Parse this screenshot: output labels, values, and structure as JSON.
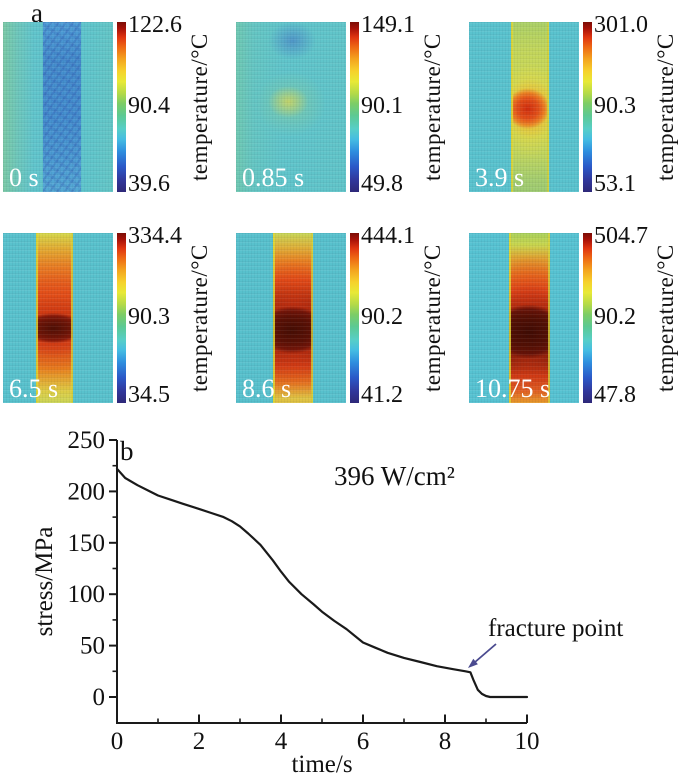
{
  "figure_labels": {
    "a": "a",
    "b": "b"
  },
  "thermal_section": {
    "colorbar_axis_label": "temperature/°C",
    "background_color_hex": "#5ec5cd",
    "colorbar_gradient_stops": [
      "#2e2878 0%",
      "#31379b 7%",
      "#2b59c8 15%",
      "#2f8fdf 24%",
      "#45bde2 31%",
      "#57cec8 37%",
      "#5cc993 45%",
      "#7ccd66 52%",
      "#b4da48 58%",
      "#e8e936 65%",
      "#f6d22c 71%",
      "#f4a51f 78%",
      "#ee6a14 85%",
      "#df3410 91%",
      "#a91208 96%",
      "#7c0d06 100%"
    ],
    "panels": [
      {
        "time_label": "0 s",
        "max_temp": "122.6",
        "mid_temp": "90.4",
        "min_temp": "39.6",
        "variant": "t0"
      },
      {
        "time_label": "0.85 s",
        "max_temp": "149.1",
        "mid_temp": "90.1",
        "min_temp": "49.8",
        "variant": "t085"
      },
      {
        "time_label": "3.9 s",
        "max_temp": "301.0",
        "mid_temp": "90.3",
        "min_temp": "53.1",
        "variant": "t39"
      },
      {
        "time_label": "6.5 s",
        "max_temp": "334.4",
        "mid_temp": "90.3",
        "min_temp": "34.5",
        "variant": "t65"
      },
      {
        "time_label": "8.6 s",
        "max_temp": "444.1",
        "mid_temp": "90.2",
        "min_temp": "41.2",
        "variant": "t86"
      },
      {
        "time_label": "10.75 s",
        "max_temp": "504.7",
        "mid_temp": "90.2",
        "min_temp": "47.8",
        "variant": "t1075"
      }
    ]
  },
  "chart_data": {
    "type": "line",
    "panel_label": "b",
    "power_annotation": "396 W/cm²",
    "fracture_annotation": "fracture point",
    "xlabel": "time/s",
    "ylabel": "stress/MPa",
    "xlim": [
      0,
      10
    ],
    "ylim": [
      0,
      250
    ],
    "x_major_ticks": [
      0,
      2,
      4,
      6,
      8,
      10
    ],
    "x_minor_ticks": [
      1,
      3,
      5,
      7,
      9
    ],
    "y_major_ticks": [
      0,
      50,
      100,
      150,
      200,
      250
    ],
    "y_minor_ticks": [
      25,
      75,
      125,
      175,
      225
    ],
    "grid": false,
    "legend": "none",
    "line_color": "#1a1a1a",
    "arrow_color": "#4a4a8f",
    "series": [
      {
        "name": "stress",
        "x": [
          0,
          0.2,
          0.5,
          0.8,
          1.0,
          1.3,
          1.6,
          2.0,
          2.3,
          2.6,
          2.8,
          3.0,
          3.2,
          3.5,
          3.8,
          4.0,
          4.2,
          4.5,
          4.8,
          5.0,
          5.3,
          5.6,
          6.0,
          6.3,
          6.6,
          7.0,
          7.4,
          7.8,
          8.2,
          8.5,
          8.62,
          8.7,
          8.8,
          8.9,
          9.0,
          9.1,
          9.3,
          10.0
        ],
        "y": [
          222,
          213,
          206,
          200,
          196,
          192,
          188,
          183,
          179,
          175,
          171,
          166,
          159,
          148,
          133,
          122,
          112,
          100,
          90,
          83,
          74,
          66,
          53,
          48,
          43,
          38,
          34,
          30,
          27,
          25,
          24,
          16,
          7,
          3,
          1,
          0,
          0,
          0
        ]
      }
    ],
    "fracture_point": {
      "x": 8.6,
      "y": 24
    }
  }
}
